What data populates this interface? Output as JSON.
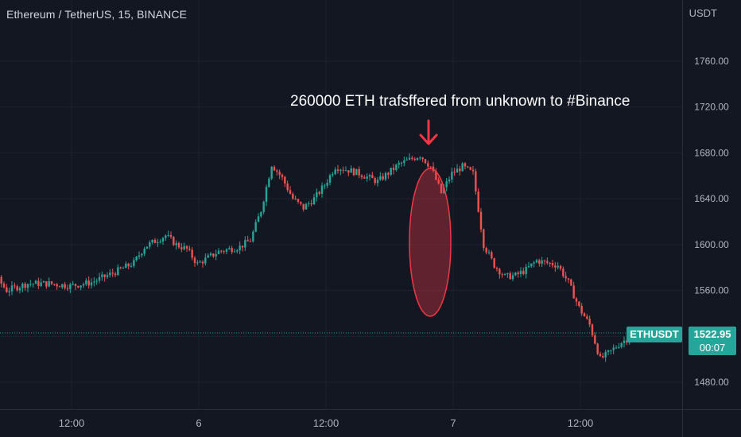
{
  "header": {
    "title": "Ethereum / TetherUS, 15, BINANCE",
    "currency": "USDT"
  },
  "annotation": {
    "text": "260000 ETH trafsffered from unknown to #Binance"
  },
  "badges": {
    "symbol": "ETHUSDT",
    "last_price": "1522.95",
    "countdown": "00:07"
  },
  "colors": {
    "background": "#131722",
    "up": "#26a69a",
    "down": "#ef5350",
    "grid": "#1f2331",
    "annotation_arrow": "#f23645",
    "ellipse_fill": "#f23645",
    "price_line": "#26a69a"
  },
  "chart_data": {
    "type": "candlestick",
    "title": "Ethereum / TetherUS, 15, BINANCE",
    "symbol": "ETHUSDT",
    "interval": "15",
    "unit": "USDT",
    "ylim": [
      1465,
      1800
    ],
    "y_ticks": [
      1480,
      1520,
      1560,
      1600,
      1640,
      1680,
      1720,
      1760
    ],
    "y_tick_labels": [
      "1480.00",
      "1520.00",
      "1560.00",
      "1600.00",
      "1640.00",
      "1680.00",
      "1720.00",
      "1760.00"
    ],
    "x_ticks": [
      {
        "label": "12:00",
        "hour": 12
      },
      {
        "label": "6",
        "hour": 24
      },
      {
        "label": "12:00",
        "hour": 36
      },
      {
        "label": "7",
        "hour": 48
      },
      {
        "label": "12:00",
        "hour": 60
      }
    ],
    "grid": true,
    "last_price": 1522.95,
    "series_path": [
      [
        0,
        1580
      ],
      [
        2,
        1578
      ],
      [
        4,
        1574
      ],
      [
        5,
        1572
      ],
      [
        6,
        1560
      ],
      [
        8,
        1566
      ],
      [
        10,
        1566
      ],
      [
        12,
        1564
      ],
      [
        14,
        1567
      ],
      [
        16,
        1575
      ],
      [
        18,
        1584
      ],
      [
        19,
        1598
      ],
      [
        21,
        1608
      ],
      [
        22,
        1600
      ],
      [
        23,
        1596
      ],
      [
        24,
        1583
      ],
      [
        26,
        1594
      ],
      [
        28,
        1598
      ],
      [
        29,
        1604
      ],
      [
        30,
        1630
      ],
      [
        31,
        1670
      ],
      [
        32,
        1658
      ],
      [
        33,
        1640
      ],
      [
        34,
        1632
      ],
      [
        35,
        1640
      ],
      [
        36,
        1652
      ],
      [
        37,
        1668
      ],
      [
        39,
        1663
      ],
      [
        41,
        1655
      ],
      [
        43,
        1670
      ],
      [
        45,
        1678
      ],
      [
        46,
        1668
      ],
      [
        47,
        1645
      ],
      [
        48,
        1662
      ],
      [
        49,
        1668
      ],
      [
        50,
        1662
      ],
      [
        51,
        1600
      ],
      [
        52,
        1582
      ],
      [
        53,
        1572
      ],
      [
        54,
        1573
      ],
      [
        55,
        1578
      ],
      [
        56,
        1586
      ],
      [
        58,
        1582
      ],
      [
        59,
        1567
      ],
      [
        60,
        1545
      ],
      [
        61,
        1530
      ],
      [
        62,
        1500
      ],
      [
        63,
        1507
      ],
      [
        64,
        1515
      ],
      [
        65,
        1520
      ],
      [
        66,
        1522.95
      ]
    ],
    "annotation": "260000 ETH trafsffered from unknown to #Binance"
  }
}
